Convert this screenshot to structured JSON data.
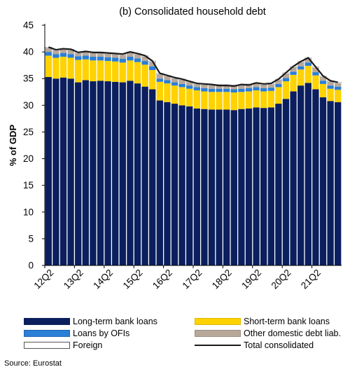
{
  "chart_data": {
    "type": "bar",
    "stacked": true,
    "title": "(b) Consolidated household debt",
    "ylabel": "% of GDP",
    "xlabel": "",
    "ylim": [
      0,
      45
    ],
    "yticks": [
      0,
      5,
      10,
      15,
      20,
      25,
      30,
      35,
      40,
      45
    ],
    "xtick_labels": [
      "12Q2",
      "13Q2",
      "14Q2",
      "15Q2",
      "16Q2",
      "17Q2",
      "18Q2",
      "19Q2",
      "20Q2",
      "21Q2"
    ],
    "categories": [
      "12Q2",
      "12Q3",
      "12Q4",
      "13Q1",
      "13Q2",
      "13Q3",
      "13Q4",
      "14Q1",
      "14Q2",
      "14Q3",
      "14Q4",
      "15Q1",
      "15Q2",
      "15Q3",
      "15Q4",
      "16Q1",
      "16Q2",
      "16Q3",
      "16Q4",
      "17Q1",
      "17Q2",
      "17Q3",
      "17Q4",
      "18Q1",
      "18Q2",
      "18Q3",
      "18Q4",
      "19Q1",
      "19Q2",
      "19Q3",
      "19Q4",
      "20Q1",
      "20Q2",
      "20Q3",
      "20Q4",
      "21Q1",
      "21Q2",
      "21Q3",
      "21Q4",
      "22Q1"
    ],
    "series": [
      {
        "name": "Long-term bank loans",
        "color": "#0b1f5e",
        "values": [
          35.3,
          35.0,
          35.2,
          35.0,
          34.3,
          34.7,
          34.5,
          34.6,
          34.5,
          34.4,
          34.3,
          34.6,
          34.1,
          33.5,
          33.0,
          30.9,
          30.6,
          30.3,
          30.0,
          29.8,
          29.4,
          29.3,
          29.2,
          29.2,
          29.2,
          29.1,
          29.3,
          29.4,
          29.6,
          29.5,
          29.6,
          30.3,
          31.2,
          32.6,
          33.7,
          34.2,
          33.0,
          31.5,
          30.8,
          30.6
        ]
      },
      {
        "name": "Short-term bank loans",
        "color": "#ffd200",
        "values": [
          4.0,
          3.9,
          3.9,
          3.9,
          4.2,
          3.9,
          3.9,
          3.8,
          3.8,
          3.8,
          3.7,
          3.8,
          4.0,
          4.1,
          3.6,
          3.5,
          3.5,
          3.4,
          3.4,
          3.3,
          3.4,
          3.3,
          3.3,
          3.3,
          3.3,
          3.3,
          3.2,
          3.2,
          3.2,
          3.1,
          3.1,
          3.1,
          3.3,
          3.1,
          3.0,
          3.2,
          2.6,
          2.5,
          2.3,
          2.3
        ]
      },
      {
        "name": "Loans by OFIs",
        "color": "#2a7fd6",
        "values": [
          0.7,
          0.7,
          0.7,
          0.7,
          0.7,
          0.7,
          0.7,
          0.7,
          0.7,
          0.7,
          0.7,
          0.7,
          0.7,
          0.7,
          0.7,
          0.6,
          0.6,
          0.6,
          0.6,
          0.6,
          0.6,
          0.6,
          0.6,
          0.6,
          0.6,
          0.6,
          0.6,
          0.6,
          0.6,
          0.6,
          0.6,
          0.6,
          0.6,
          0.6,
          0.6,
          0.6,
          0.6,
          0.6,
          0.6,
          0.6
        ]
      },
      {
        "name": "Other domestic debt liab.",
        "color": "#b8a89a",
        "values": [
          0.7,
          0.6,
          0.6,
          0.7,
          0.5,
          0.6,
          0.6,
          0.6,
          0.6,
          0.6,
          0.7,
          0.7,
          0.7,
          0.8,
          0.8,
          0.8,
          0.7,
          0.7,
          0.7,
          0.6,
          0.5,
          0.6,
          0.6,
          0.6,
          0.6,
          0.6,
          0.6,
          0.6,
          0.6,
          0.6,
          0.6,
          0.7,
          0.8,
          0.8,
          0.7,
          0.7,
          0.8,
          0.7,
          0.7,
          0.6
        ]
      },
      {
        "name": "Foreign",
        "color": "#ffffff",
        "values": [
          0.2,
          0.2,
          0.2,
          0.2,
          0.2,
          0.2,
          0.2,
          0.2,
          0.2,
          0.2,
          0.2,
          0.2,
          0.2,
          0.2,
          0.2,
          0.2,
          0.2,
          0.2,
          0.2,
          0.2,
          0.2,
          0.2,
          0.2,
          0.2,
          0.2,
          0.2,
          0.2,
          0.2,
          0.2,
          0.2,
          0.2,
          0.2,
          0.2,
          0.2,
          0.2,
          0.2,
          0.2,
          0.2,
          0.2,
          0.2
        ]
      }
    ],
    "line_series": {
      "name": "Total consolidated",
      "color": "#1a1a1a",
      "values": [
        40.9,
        40.4,
        40.6,
        40.5,
        39.9,
        40.1,
        39.9,
        39.9,
        39.8,
        39.7,
        39.6,
        40.0,
        39.7,
        39.3,
        38.3,
        36.0,
        35.6,
        35.2,
        34.9,
        34.5,
        34.1,
        34.0,
        33.9,
        33.7,
        33.7,
        33.6,
        33.9,
        33.8,
        34.2,
        34.0,
        34.1,
        34.9,
        36.1,
        37.3,
        38.2,
        38.9,
        37.2,
        35.5,
        34.6,
        34.3
      ]
    },
    "legend_position": "bottom",
    "grid": false
  },
  "source": "Source: Eurostat"
}
